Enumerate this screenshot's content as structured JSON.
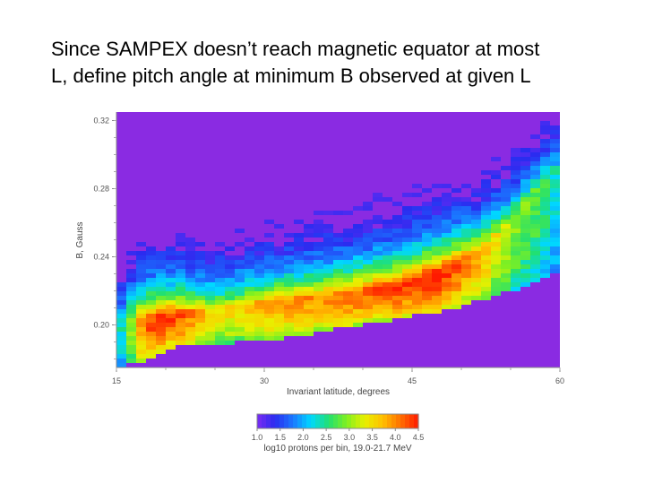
{
  "slide": {
    "title_line1": "Since SAMPEX doesn’t reach magnetic equator at most",
    "title_line2": "L, define pitch angle at minimum B observed at given L"
  },
  "chart_data": {
    "type": "heatmap",
    "xlabel": "Invariant latitude, degrees",
    "ylabel": "B, Gauss",
    "xlim": [
      15,
      60
    ],
    "ylim": [
      0.175,
      0.325
    ],
    "x_ticks": [
      "15",
      "30",
      "45",
      "60"
    ],
    "y_ticks": [
      "0.20",
      "0.24",
      "0.28",
      "0.32"
    ],
    "y_tick_values": [
      0.2,
      0.24,
      0.28,
      0.32
    ],
    "background_color": "#8a2be2",
    "colorbar": {
      "label": "log10 protons per bin, 19.0-21.7 MeV",
      "min": 1.0,
      "max": 4.5,
      "ticks": [
        "1.0",
        "1.5",
        "2.0",
        "2.5",
        "3.0",
        "3.5",
        "4.0",
        "4.5"
      ],
      "colors": [
        "#7b2cf2",
        "#2a2cf0",
        "#1a78ff",
        "#00d8ff",
        "#22e070",
        "#80f020",
        "#e8f000",
        "#ffc000",
        "#ff7000",
        "#ff1a00"
      ]
    },
    "band": {
      "x": [
        15,
        18,
        20,
        22,
        25,
        28,
        30,
        33,
        36,
        40,
        44,
        48,
        52,
        55,
        58,
        60
      ],
      "lower_edge": [
        0.175,
        0.178,
        0.185,
        0.188,
        0.188,
        0.19,
        0.191,
        0.193,
        0.196,
        0.2,
        0.204,
        0.208,
        0.214,
        0.22,
        0.226,
        0.232
      ],
      "peak_edge": [
        0.205,
        0.205,
        0.207,
        0.208,
        0.21,
        0.212,
        0.214,
        0.216,
        0.218,
        0.221,
        0.226,
        0.233,
        0.245,
        0.262,
        0.284,
        0.296
      ],
      "peak_level": [
        2.0,
        4.3,
        4.4,
        4.2,
        3.4,
        3.6,
        3.8,
        3.9,
        4.0,
        4.2,
        4.4,
        4.5,
        3.8,
        3.1,
        2.7,
        2.2
      ]
    }
  }
}
